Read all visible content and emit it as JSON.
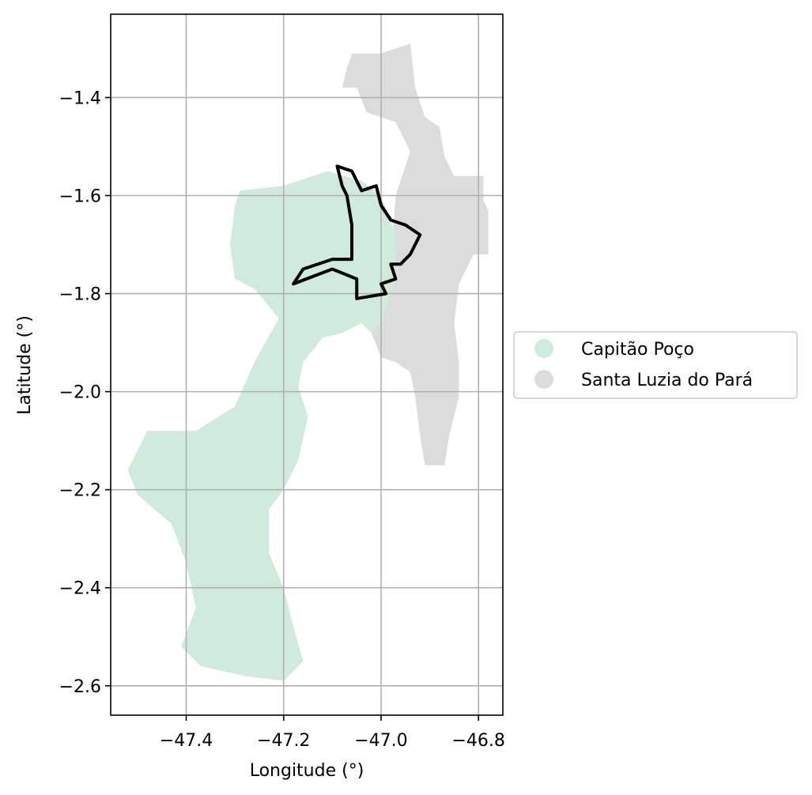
{
  "chart_data": {
    "type": "map",
    "xlabel": "Longitude (°)",
    "ylabel": "Latitude (°)",
    "xlim": [
      -47.555,
      -46.75
    ],
    "ylim": [
      -2.66,
      -1.23
    ],
    "x_ticks": [
      -47.4,
      -47.2,
      -47.0,
      -46.8
    ],
    "y_ticks": [
      -2.6,
      -2.4,
      -2.2,
      -2.0,
      -1.8,
      -1.6,
      -1.4
    ],
    "grid": true,
    "legend_position": "right",
    "colors": {
      "capitao_poco": "#cfebdd",
      "santa_luzia": "#dcdcdc",
      "outline": "#000000"
    },
    "legend": [
      {
        "label": "Capitão Poço",
        "color": "#cfebdd"
      },
      {
        "label": "Santa Luzia do Pará",
        "color": "#dcdcdc"
      }
    ],
    "regions": [
      {
        "name": "Santa Luzia do Pará",
        "color": "#dcdcdc",
        "coords": [
          [
            -47.07,
            -1.34
          ],
          [
            -47.06,
            -1.31
          ],
          [
            -47.0,
            -1.31
          ],
          [
            -46.94,
            -1.29
          ],
          [
            -46.93,
            -1.38
          ],
          [
            -46.91,
            -1.44
          ],
          [
            -46.88,
            -1.46
          ],
          [
            -46.87,
            -1.52
          ],
          [
            -46.85,
            -1.56
          ],
          [
            -46.79,
            -1.56
          ],
          [
            -46.79,
            -1.61
          ],
          [
            -46.78,
            -1.63
          ],
          [
            -46.78,
            -1.72
          ],
          [
            -46.81,
            -1.72
          ],
          [
            -46.84,
            -1.78
          ],
          [
            -46.85,
            -1.86
          ],
          [
            -46.84,
            -1.94
          ],
          [
            -46.84,
            -2.01
          ],
          [
            -46.86,
            -2.09
          ],
          [
            -46.87,
            -2.15
          ],
          [
            -46.91,
            -2.15
          ],
          [
            -46.92,
            -2.09
          ],
          [
            -46.93,
            -2.01
          ],
          [
            -46.94,
            -1.96
          ],
          [
            -46.97,
            -1.94
          ],
          [
            -47.0,
            -1.93
          ],
          [
            -47.02,
            -1.88
          ],
          [
            -47.03,
            -1.85
          ],
          [
            -46.98,
            -1.74
          ],
          [
            -46.97,
            -1.6
          ],
          [
            -46.94,
            -1.51
          ],
          [
            -46.97,
            -1.45
          ],
          [
            -47.03,
            -1.43
          ],
          [
            -47.05,
            -1.38
          ],
          [
            -47.08,
            -1.38
          ]
        ]
      },
      {
        "name": "Capitão Poço",
        "color": "#cfebdd",
        "coords": [
          [
            -47.29,
            -1.59
          ],
          [
            -47.2,
            -1.58
          ],
          [
            -47.11,
            -1.55
          ],
          [
            -47.04,
            -1.57
          ],
          [
            -47.0,
            -1.6
          ],
          [
            -46.97,
            -1.68
          ],
          [
            -46.97,
            -1.77
          ],
          [
            -47.0,
            -1.86
          ],
          [
            -47.02,
            -1.88
          ],
          [
            -47.04,
            -1.86
          ],
          [
            -47.08,
            -1.88
          ],
          [
            -47.12,
            -1.89
          ],
          [
            -47.16,
            -1.94
          ],
          [
            -47.17,
            -1.99
          ],
          [
            -47.15,
            -2.05
          ],
          [
            -47.17,
            -2.14
          ],
          [
            -47.2,
            -2.2
          ],
          [
            -47.23,
            -2.24
          ],
          [
            -47.23,
            -2.33
          ],
          [
            -47.2,
            -2.4
          ],
          [
            -47.18,
            -2.48
          ],
          [
            -47.16,
            -2.55
          ],
          [
            -47.2,
            -2.59
          ],
          [
            -47.28,
            -2.58
          ],
          [
            -47.37,
            -2.56
          ],
          [
            -47.41,
            -2.52
          ],
          [
            -47.38,
            -2.44
          ],
          [
            -47.4,
            -2.35
          ],
          [
            -47.43,
            -2.27
          ],
          [
            -47.5,
            -2.21
          ],
          [
            -47.52,
            -2.16
          ],
          [
            -47.48,
            -2.08
          ],
          [
            -47.38,
            -2.08
          ],
          [
            -47.3,
            -2.03
          ],
          [
            -47.26,
            -1.94
          ],
          [
            -47.21,
            -1.85
          ],
          [
            -47.26,
            -1.79
          ],
          [
            -47.3,
            -1.77
          ],
          [
            -47.31,
            -1.7
          ],
          [
            -47.3,
            -1.62
          ]
        ]
      }
    ],
    "outline": {
      "coords": [
        [
          -47.09,
          -1.54
        ],
        [
          -47.06,
          -1.55
        ],
        [
          -47.04,
          -1.59
        ],
        [
          -47.01,
          -1.58
        ],
        [
          -47.0,
          -1.62
        ],
        [
          -46.98,
          -1.65
        ],
        [
          -46.95,
          -1.66
        ],
        [
          -46.92,
          -1.68
        ],
        [
          -46.94,
          -1.72
        ],
        [
          -46.96,
          -1.74
        ],
        [
          -46.98,
          -1.74
        ],
        [
          -46.97,
          -1.77
        ],
        [
          -47.0,
          -1.78
        ],
        [
          -46.99,
          -1.8
        ],
        [
          -47.05,
          -1.81
        ],
        [
          -47.05,
          -1.77
        ],
        [
          -47.1,
          -1.75
        ],
        [
          -47.18,
          -1.78
        ],
        [
          -47.16,
          -1.75
        ],
        [
          -47.1,
          -1.73
        ],
        [
          -47.06,
          -1.73
        ],
        [
          -47.06,
          -1.66
        ],
        [
          -47.07,
          -1.6
        ],
        [
          -47.08,
          -1.58
        ]
      ]
    }
  }
}
